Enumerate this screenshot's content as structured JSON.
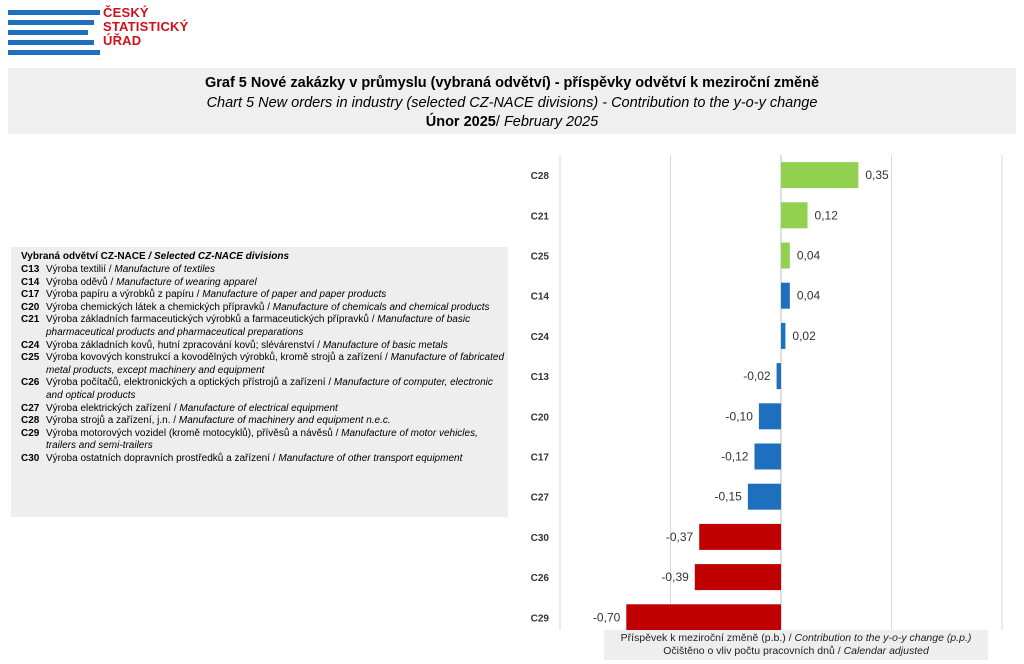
{
  "logo": {
    "lines": [
      "ČESKÝ",
      "STATISTICKÝ",
      "ÚŘAD"
    ],
    "color": "#d0101a",
    "bar_color": "#1f6fc0"
  },
  "title": {
    "cz": "Graf 5 Nové zakázky v průmyslu (vybraná odvětví) - příspěvky odvětví k meziroční změně",
    "en": "Chart 5 New orders in industry (selected CZ-NACE divisions) - Contribution to the y-o-y change",
    "period_cz": "Únor 2025",
    "period_sep": "/ ",
    "period_en": "February 2025"
  },
  "legend": {
    "heading_cz": "Vybraná odvětví CZ-NACE",
    "heading_en": " / Selected CZ-NACE divisions",
    "items": [
      {
        "code": "C13",
        "cz": "Výroba textilií",
        "en": "Manufacture of textiles"
      },
      {
        "code": "C14",
        "cz": "Výroba oděvů",
        "en": "Manufacture of wearing apparel"
      },
      {
        "code": "C17",
        "cz": "Výroba papíru a výrobků z papíru",
        "en": "Manufacture of paper and paper products"
      },
      {
        "code": "C20",
        "cz": "Výroba chemických látek a chemických přípravků",
        "en": "Manufacture of chemicals and chemical products"
      },
      {
        "code": "C21",
        "cz": "Výroba základních farmaceutických výrobků a farmaceutických přípravků",
        "en": "Manufacture of basic pharmaceutical products and pharmaceutical preparations"
      },
      {
        "code": "C24",
        "cz": "Výroba základních kovů, hutní zpracování kovů; slévárenství",
        "en": "Manufacture of basic metals"
      },
      {
        "code": "C25",
        "cz": "Výroba kovových konstrukcí a kovodělných výrobků, kromě strojů a zařízení",
        "en": "Manufacture of fabricated metal products, except machinery and equipment"
      },
      {
        "code": "C26",
        "cz": "Výroba počítačů, elektronických a optických přístrojů a zařízení",
        "en": "Manufacture of computer, electronic and optical products"
      },
      {
        "code": "C27",
        "cz": "Výroba elektrických zařízení",
        "en": "Manufacture of electrical equipment"
      },
      {
        "code": "C28",
        "cz": "Výroba strojů a zařízení, j.n.",
        "en": "Manufacture of machinery and equipment n.e.c."
      },
      {
        "code": "C29",
        "cz": "Výroba motorových vozidel (kromě motocyklů), přívěsů a návěsů",
        "en": "Manufacture of motor vehicles, trailers and semi-trailers"
      },
      {
        "code": "C30",
        "cz": "Výroba ostatních dopravních prostředků a zařízení",
        "en": "Manufacture of other transport equipment"
      }
    ]
  },
  "chart_data": {
    "type": "bar",
    "orientation": "horizontal",
    "categories": [
      "C28",
      "C21",
      "C25",
      "C14",
      "C24",
      "C13",
      "C20",
      "C17",
      "C27",
      "C30",
      "C26",
      "C29"
    ],
    "values": [
      0.35,
      0.12,
      0.04,
      0.04,
      0.02,
      -0.02,
      -0.1,
      -0.12,
      -0.15,
      -0.37,
      -0.39,
      -0.7
    ],
    "value_labels": [
      "0,35",
      "0,12",
      "0,04",
      "0,04",
      "0,02",
      "-0,02",
      "-0,10",
      "-0,12",
      "-0,15",
      "-0,37",
      "-0,39",
      "-0,70"
    ],
    "colors": [
      "#92d050",
      "#92d050",
      "#92d050",
      "#1f6fbf",
      "#1f6fbf",
      "#1f6fbf",
      "#1f6fbf",
      "#1f6fbf",
      "#1f6fbf",
      "#c00000",
      "#c00000",
      "#c00000"
    ],
    "xlim": [
      -1.0,
      1.0
    ],
    "gridlines_at": [
      -1.0,
      -0.5,
      0.0,
      0.5,
      1.0
    ],
    "grid": true,
    "xlabel_cz": "Příspěvek k meziroční změně (p.b.)",
    "xlabel_en": "Contribution to the y-o-y change (p.p.)",
    "note_cz": "Očištěno o vliv počtu pracovních dnů",
    "note_en": "Calendar adjusted"
  }
}
